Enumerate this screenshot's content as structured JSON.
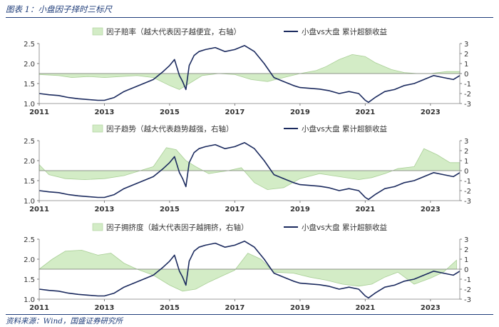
{
  "caption": "图表 1：小盘因子择时三标尺",
  "source": "资料来源：Wind，国盛证券研究所",
  "colors": {
    "area": "#d3ecc6",
    "areaStroke": "#a9cf96",
    "line": "#1b2a5e",
    "axis": "#7f7f7f",
    "text": "#333333"
  },
  "chart_data": [
    {
      "type": "area+line",
      "legend": [
        "因子赔率（越大代表因子越便宜，右轴）",
        "小盘vs大盘 累计超额收益"
      ],
      "x_ticks": [
        "2011",
        "2013",
        "2015",
        "2017",
        "2019",
        "2021",
        "2023"
      ],
      "y_left_ticks": [
        "1.0",
        "1.5",
        "2.0",
        "2.5"
      ],
      "y_left_range": [
        1.0,
        2.5
      ],
      "y_right_ticks": [
        "-3",
        "-2",
        "-1",
        "0",
        "1",
        "2",
        "3"
      ],
      "y_right_range": [
        -3,
        3
      ],
      "area_series": {
        "name": "因子赔率",
        "x": [
          2011.0,
          2011.6,
          2012.0,
          2012.5,
          2013.0,
          2013.5,
          2014.0,
          2014.5,
          2015.0,
          2015.3,
          2015.6,
          2016.0,
          2016.5,
          2017.0,
          2017.5,
          2018.0,
          2018.5,
          2019.0,
          2019.5,
          2019.8,
          2020.2,
          2020.6,
          2021.0,
          2021.3,
          2021.8,
          2022.2,
          2022.6,
          2023.0,
          2023.5,
          2023.9
        ],
        "y": [
          -0.1,
          -0.2,
          -0.4,
          -0.3,
          -0.4,
          -0.3,
          -0.2,
          -0.4,
          -1.2,
          -1.6,
          -1.0,
          -0.2,
          0.0,
          -0.1,
          -0.6,
          -0.8,
          -0.4,
          0.0,
          0.3,
          0.7,
          1.4,
          1.9,
          1.7,
          1.1,
          0.4,
          0.1,
          0.0,
          0.0,
          0.2,
          0.2
        ]
      },
      "line_series": {
        "name": "小盘vs大盘 累计超额收益"
      }
    },
    {
      "type": "area+line",
      "legend": [
        "因子趋势（越大代表趋势越强，右轴）",
        "小盘vs大盘 累计超额收益"
      ],
      "x_ticks": [
        "2011",
        "2013",
        "2015",
        "2017",
        "2019",
        "2021",
        "2023"
      ],
      "y_left_ticks": [
        "1.0",
        "1.5",
        "2.0",
        "2.5"
      ],
      "y_left_range": [
        1.0,
        2.5
      ],
      "y_right_ticks": [
        "-3",
        "-2",
        "-1",
        "0",
        "1",
        "2",
        "3"
      ],
      "y_right_range": [
        -3,
        3
      ],
      "area_series": {
        "name": "因子趋势",
        "x": [
          2011.0,
          2011.3,
          2011.8,
          2012.4,
          2013.0,
          2013.6,
          2014.0,
          2014.5,
          2014.9,
          2015.2,
          2015.5,
          2015.8,
          2016.2,
          2016.8,
          2017.2,
          2017.6,
          2018.0,
          2018.5,
          2019.0,
          2019.6,
          2020.2,
          2020.8,
          2021.2,
          2021.6,
          2022.0,
          2022.5,
          2022.8,
          2023.2,
          2023.6,
          2023.9
        ],
        "y": [
          0.6,
          -0.4,
          -0.8,
          -0.9,
          -0.8,
          -0.5,
          -0.1,
          0.4,
          2.3,
          2.1,
          1.0,
          0.4,
          -0.3,
          0.0,
          0.3,
          -1.2,
          -1.9,
          -1.7,
          -0.8,
          -0.3,
          -0.6,
          -0.9,
          -0.7,
          -0.3,
          0.2,
          0.4,
          2.2,
          1.6,
          0.8,
          0.8
        ]
      },
      "line_series": {
        "name": "小盘vs大盘 累计超额收益"
      }
    },
    {
      "type": "area+line",
      "legend": [
        "因子拥挤度（越大代表因子越拥挤，右轴）",
        "小盘vs大盘 累计超额收益"
      ],
      "x_ticks": [
        "2011",
        "2013",
        "2015",
        "2017",
        "2019",
        "2021",
        "2023"
      ],
      "y_left_ticks": [
        "1.0",
        "1.5",
        "2.0",
        "2.5"
      ],
      "y_left_range": [
        1.0,
        2.5
      ],
      "y_right_ticks": [
        "-3",
        "-2",
        "-1",
        "0",
        "1",
        "2",
        "3"
      ],
      "y_right_range": [
        -3,
        3
      ],
      "area_series": {
        "name": "因子拥挤度",
        "x": [
          2011.0,
          2011.4,
          2011.8,
          2012.3,
          2012.8,
          2013.2,
          2013.6,
          2014.0,
          2014.5,
          2015.0,
          2015.4,
          2015.8,
          2016.2,
          2016.6,
          2017.0,
          2017.4,
          2017.8,
          2018.2,
          2018.8,
          2019.3,
          2019.8,
          2020.3,
          2020.8,
          2021.2,
          2021.6,
          2022.0,
          2022.5,
          2023.0,
          2023.4,
          2023.8
        ],
        "y": [
          0.0,
          1.0,
          1.8,
          1.9,
          1.4,
          1.6,
          0.6,
          0.0,
          -0.6,
          -1.6,
          -2.2,
          -2.0,
          -1.3,
          -0.7,
          -0.1,
          1.6,
          1.0,
          -0.3,
          -0.4,
          -0.8,
          -1.1,
          -1.5,
          -1.7,
          -1.5,
          -0.8,
          -0.3,
          -1.5,
          -0.9,
          -0.3,
          0.9
        ]
      },
      "line_series": {
        "name": "小盘vs大盘 累计超额收益"
      }
    }
  ],
  "shared_line": {
    "x": [
      2011.0,
      2011.3,
      2011.6,
      2011.9,
      2012.2,
      2012.5,
      2012.8,
      2013.0,
      2013.3,
      2013.6,
      2013.9,
      2014.2,
      2014.5,
      2014.8,
      2015.0,
      2015.15,
      2015.3,
      2015.4,
      2015.5,
      2015.6,
      2015.75,
      2015.9,
      2016.1,
      2016.4,
      2016.7,
      2017.0,
      2017.3,
      2017.6,
      2017.9,
      2018.2,
      2018.5,
      2018.8,
      2019.0,
      2019.3,
      2019.6,
      2019.9,
      2020.2,
      2020.5,
      2020.8,
      2021.0,
      2021.1,
      2021.3,
      2021.6,
      2021.9,
      2022.2,
      2022.5,
      2022.8,
      2023.1,
      2023.4,
      2023.7,
      2023.9
    ],
    "y": [
      1.25,
      1.22,
      1.2,
      1.15,
      1.12,
      1.1,
      1.08,
      1.08,
      1.15,
      1.3,
      1.4,
      1.5,
      1.6,
      1.8,
      1.95,
      2.1,
      1.7,
      1.55,
      1.35,
      1.95,
      2.2,
      2.3,
      2.35,
      2.4,
      2.3,
      2.35,
      2.45,
      2.3,
      2.0,
      1.65,
      1.55,
      1.45,
      1.4,
      1.38,
      1.36,
      1.32,
      1.25,
      1.3,
      1.25,
      1.08,
      1.03,
      1.15,
      1.3,
      1.35,
      1.45,
      1.5,
      1.6,
      1.7,
      1.65,
      1.6,
      1.7
    ]
  }
}
